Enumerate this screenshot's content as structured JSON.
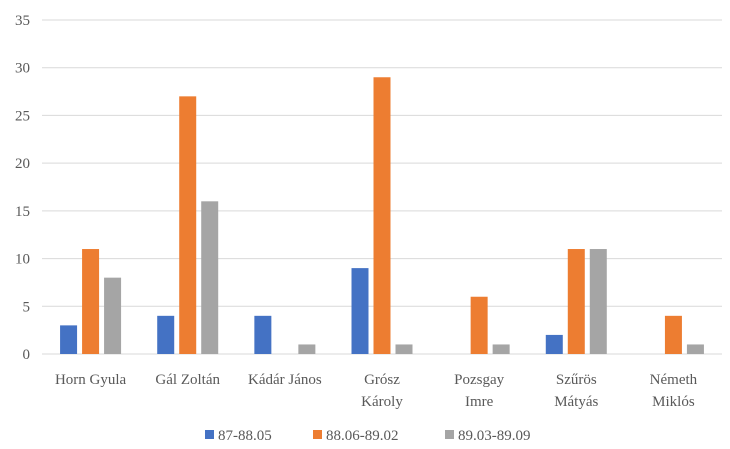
{
  "chart_data": {
    "type": "bar",
    "title": "",
    "xlabel": "",
    "ylabel": "",
    "categories": [
      [
        "Horn Gyula"
      ],
      [
        "Gál Zoltán"
      ],
      [
        "Kádár János"
      ],
      [
        "Grósz",
        "Károly"
      ],
      [
        "Pozsgay",
        "Imre"
      ],
      [
        "Szűrös",
        "Mátyás"
      ],
      [
        "Németh",
        "Miklós"
      ]
    ],
    "series": [
      {
        "name": "87-88.05",
        "color": "#4472c4",
        "values": [
          3,
          4,
          4,
          9,
          0,
          2,
          0
        ]
      },
      {
        "name": "88.06-89.02",
        "color": "#ed7d31",
        "values": [
          11,
          27,
          0,
          29,
          6,
          11,
          4
        ]
      },
      {
        "name": "89.03-89.09",
        "color": "#a5a5a5",
        "values": [
          8,
          16,
          1,
          1,
          1,
          11,
          1
        ]
      }
    ],
    "ylim": [
      0,
      35
    ],
    "yticks": [
      0,
      5,
      10,
      15,
      20,
      25,
      30,
      35
    ],
    "grid": true,
    "legend": "bottom"
  }
}
